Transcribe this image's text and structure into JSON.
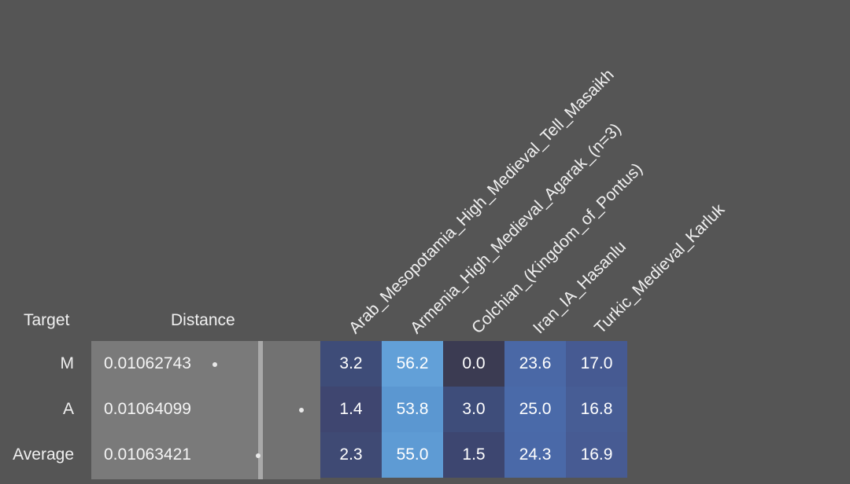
{
  "headers": {
    "target": "Target",
    "distance": "Distance"
  },
  "columns": [
    "Arab_Mesopotamia_High_Medieval_Tell_Masaikh",
    "Armenia_High_Medieval_Agarak_(n=3)",
    "Colchian_(Kingdom_of_Pontus)",
    "Iran_IA_Hasanlu",
    "Turkic_Medieval_Karluk"
  ],
  "rows": [
    {
      "label": "M",
      "distance": "0.01062743",
      "values": [
        "3.2",
        "56.2",
        "0.0",
        "23.6",
        "17.0"
      ]
    },
    {
      "label": "A",
      "distance": "0.01064099",
      "values": [
        "1.4",
        "53.8",
        "3.0",
        "25.0",
        "16.8"
      ]
    },
    {
      "label": "Average",
      "distance": "0.01063421",
      "values": [
        "2.3",
        "55.0",
        "1.5",
        "24.3",
        "16.9"
      ]
    }
  ],
  "colors": {
    "background": "#555555",
    "cells": [
      [
        "#3e4c78",
        "#62a0d8",
        "#3b3b52",
        "#4a68a6",
        "#465a92"
      ],
      [
        "#3f4670",
        "#5b97d1",
        "#3e4d7a",
        "#4a6aa9",
        "#475d95"
      ],
      [
        "#3f4a74",
        "#5e9bd4",
        "#3d4670",
        "#4a69a8",
        "#475b93"
      ]
    ]
  }
}
